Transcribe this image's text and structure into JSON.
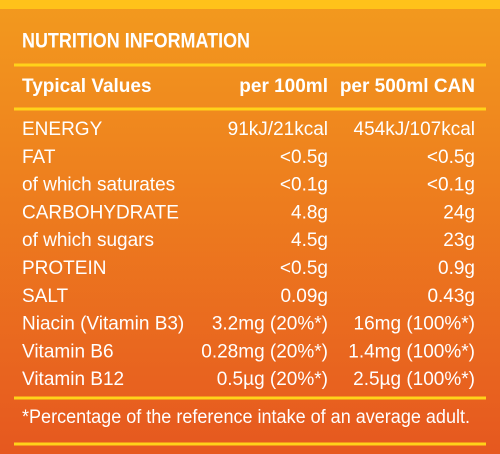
{
  "title": "NUTRITION INFORMATION",
  "table": {
    "header": [
      "Typical Values",
      "per 100ml",
      "per 500ml CAN"
    ],
    "rows": [
      [
        "ENERGY",
        "91kJ/21kcal",
        "454kJ/107kcal"
      ],
      [
        "FAT",
        "<0.5g",
        "<0.5g"
      ],
      [
        "of which saturates",
        "<0.1g",
        "<0.1g"
      ],
      [
        "CARBOHYDRATE",
        "4.8g",
        "24g"
      ],
      [
        "of which sugars",
        "4.5g",
        "23g"
      ],
      [
        "PROTEIN",
        "<0.5g",
        "0.9g"
      ],
      [
        "SALT",
        "0.09g",
        "0.43g"
      ],
      [
        "Niacin (Vitamin B3)",
        "3.2mg (20%*)",
        "16mg (100%*)"
      ],
      [
        "Vitamin B6",
        "0.28mg (20%*)",
        "1.4mg (100%*)"
      ],
      [
        "Vitamin B12",
        "0.5µg (20%*)",
        "2.5µg (100%*)"
      ]
    ]
  },
  "footnote": "*Percentage of the reference intake of an average adult."
}
